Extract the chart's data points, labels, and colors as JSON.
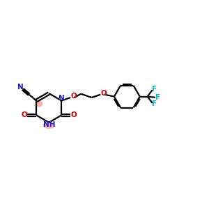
{
  "background_color": "#ffffff",
  "bond_color": "#000000",
  "N_color": "#1a1acc",
  "O_color": "#cc0000",
  "F_color": "#00bbbb",
  "highlight_color": "#ff7777",
  "highlight_alpha": 0.55,
  "bond_width": 1.6,
  "figsize": [
    3.0,
    3.0
  ],
  "dpi": 100,
  "xlim": [
    0,
    12
  ],
  "ylim": [
    2,
    9
  ]
}
